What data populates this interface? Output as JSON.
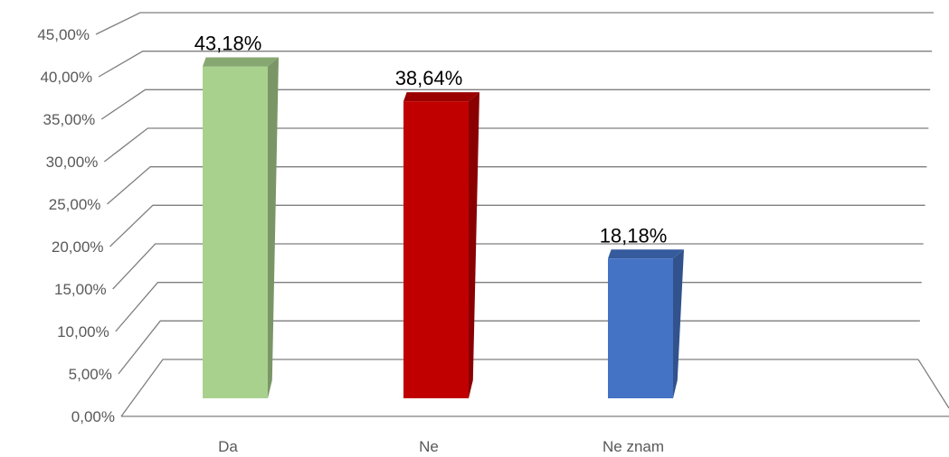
{
  "chart_data": {
    "type": "bar",
    "categories": [
      "Da",
      "Ne",
      "Ne znam"
    ],
    "values": [
      43.18,
      38.64,
      18.18
    ],
    "value_labels": [
      "43,18%",
      "38,64%",
      "18,18%"
    ],
    "ylim": [
      0,
      45
    ],
    "yticks": [
      0,
      5,
      10,
      15,
      20,
      25,
      30,
      35,
      40,
      45
    ],
    "ytick_labels": [
      "0,00%",
      "5,00%",
      "10,00%",
      "15,00%",
      "20,00%",
      "25,00%",
      "30,00%",
      "35,00%",
      "40,00%",
      "45,00%"
    ],
    "colors": [
      "#a9d18e",
      "#c00000",
      "#4472c4"
    ],
    "grid": true,
    "style": "3d-perspective"
  }
}
